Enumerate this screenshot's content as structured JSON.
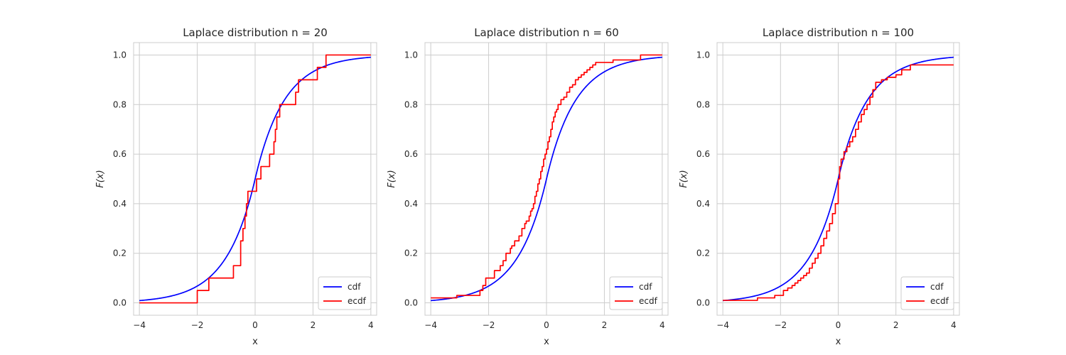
{
  "chart_data": [
    {
      "type": "line",
      "title": "Laplace distribution n = 20",
      "xlabel": "x",
      "ylabel": "F(x)",
      "xlim": [
        -4.2,
        4.2
      ],
      "ylim": [
        -0.05,
        1.05
      ],
      "xticks": [
        -4,
        -2,
        0,
        2,
        4
      ],
      "yticks": [
        0.0,
        0.2,
        0.4,
        0.6,
        0.8,
        1.0
      ],
      "xtick_labels": [
        "−4",
        "−2",
        "0",
        "2",
        "4"
      ],
      "ytick_labels": [
        "0.0",
        "0.2",
        "0.4",
        "0.6",
        "0.8",
        "1.0"
      ],
      "grid": true,
      "legend_position": "lower-right",
      "series": [
        {
          "name": "cdf",
          "color": "#0000ff",
          "kind": "laplace_cdf",
          "loc": 0,
          "scale": 1,
          "x_range": [
            -4,
            4
          ]
        },
        {
          "name": "ecdf",
          "color": "#ff0000",
          "kind": "step",
          "x": [
            -4.0,
            -2.0,
            -1.6,
            -0.75,
            -0.5,
            -0.42,
            -0.35,
            -0.3,
            -0.25,
            -0.1,
            0.05,
            0.2,
            0.5,
            0.65,
            0.7,
            0.75,
            0.85,
            0.9,
            1.4,
            1.5,
            2.15,
            2.45,
            4.0
          ],
          "y": [
            0.0,
            0.05,
            0.1,
            0.15,
            0.25,
            0.3,
            0.35,
            0.4,
            0.45,
            0.45,
            0.5,
            0.55,
            0.6,
            0.65,
            0.7,
            0.75,
            0.8,
            0.8,
            0.85,
            0.9,
            0.95,
            1.0,
            1.0
          ]
        }
      ]
    },
    {
      "type": "line",
      "title": "Laplace distribution n = 60",
      "xlabel": "x",
      "ylabel": "F(x)",
      "xlim": [
        -4.2,
        4.2
      ],
      "ylim": [
        -0.05,
        1.05
      ],
      "xticks": [
        -4,
        -2,
        0,
        2,
        4
      ],
      "yticks": [
        0.0,
        0.2,
        0.4,
        0.6,
        0.8,
        1.0
      ],
      "xtick_labels": [
        "−4",
        "−2",
        "0",
        "2",
        "4"
      ],
      "ytick_labels": [
        "0.0",
        "0.2",
        "0.4",
        "0.6",
        "0.8",
        "1.0"
      ],
      "grid": true,
      "legend_position": "lower-right",
      "series": [
        {
          "name": "cdf",
          "color": "#0000ff",
          "kind": "laplace_cdf",
          "loc": 0,
          "scale": 1,
          "x_range": [
            -4,
            4
          ]
        },
        {
          "name": "ecdf",
          "color": "#ff0000",
          "kind": "step",
          "x": [
            -4.0,
            -3.1,
            -2.3,
            -2.2,
            -2.1,
            -1.8,
            -1.6,
            -1.5,
            -1.4,
            -1.25,
            -1.2,
            -1.1,
            -0.95,
            -0.85,
            -0.75,
            -0.7,
            -0.6,
            -0.55,
            -0.5,
            -0.45,
            -0.4,
            -0.35,
            -0.3,
            -0.25,
            -0.2,
            -0.15,
            -0.1,
            -0.05,
            0.0,
            0.05,
            0.1,
            0.15,
            0.2,
            0.25,
            0.3,
            0.35,
            0.4,
            0.5,
            0.6,
            0.7,
            0.8,
            0.9,
            1.0,
            1.1,
            1.2,
            1.3,
            1.4,
            1.5,
            1.6,
            1.7,
            1.75,
            2.3,
            3.25,
            4.0
          ],
          "y": [
            0.02,
            0.03,
            0.05,
            0.07,
            0.1,
            0.13,
            0.15,
            0.17,
            0.2,
            0.22,
            0.23,
            0.25,
            0.27,
            0.3,
            0.32,
            0.33,
            0.35,
            0.37,
            0.38,
            0.4,
            0.43,
            0.45,
            0.48,
            0.5,
            0.53,
            0.55,
            0.58,
            0.6,
            0.62,
            0.65,
            0.67,
            0.7,
            0.73,
            0.75,
            0.77,
            0.78,
            0.8,
            0.82,
            0.83,
            0.85,
            0.87,
            0.88,
            0.9,
            0.91,
            0.92,
            0.93,
            0.94,
            0.95,
            0.96,
            0.97,
            0.97,
            0.98,
            1.0,
            1.0
          ]
        }
      ]
    },
    {
      "type": "line",
      "title": "Laplace distribution n = 100",
      "xlabel": "x",
      "ylabel": "F(x)",
      "xlim": [
        -4.2,
        4.2
      ],
      "ylim": [
        -0.05,
        1.05
      ],
      "xticks": [
        -4,
        -2,
        0,
        2,
        4
      ],
      "yticks": [
        0.0,
        0.2,
        0.4,
        0.6,
        0.8,
        1.0
      ],
      "xtick_labels": [
        "−4",
        "−2",
        "0",
        "2",
        "4"
      ],
      "ytick_labels": [
        "0.0",
        "0.2",
        "0.4",
        "0.6",
        "0.8",
        "1.0"
      ],
      "grid": true,
      "legend_position": "lower-right",
      "series": [
        {
          "name": "cdf",
          "color": "#0000ff",
          "kind": "laplace_cdf",
          "loc": 0,
          "scale": 1,
          "x_range": [
            -4,
            4
          ]
        },
        {
          "name": "ecdf",
          "color": "#ff0000",
          "kind": "step",
          "x": [
            -4.0,
            -2.8,
            -2.2,
            -1.9,
            -1.75,
            -1.6,
            -1.5,
            -1.4,
            -1.3,
            -1.2,
            -1.1,
            -1.0,
            -0.9,
            -0.8,
            -0.7,
            -0.6,
            -0.5,
            -0.4,
            -0.3,
            -0.2,
            -0.1,
            0.0,
            0.05,
            0.1,
            0.2,
            0.3,
            0.4,
            0.5,
            0.6,
            0.7,
            0.8,
            0.9,
            1.0,
            1.1,
            1.2,
            1.3,
            1.5,
            1.7,
            2.0,
            2.2,
            2.5,
            4.0
          ],
          "y": [
            0.01,
            0.02,
            0.03,
            0.05,
            0.06,
            0.07,
            0.08,
            0.09,
            0.1,
            0.11,
            0.12,
            0.14,
            0.16,
            0.18,
            0.2,
            0.23,
            0.26,
            0.29,
            0.32,
            0.36,
            0.4,
            0.5,
            0.55,
            0.58,
            0.61,
            0.63,
            0.65,
            0.67,
            0.7,
            0.73,
            0.76,
            0.78,
            0.8,
            0.83,
            0.86,
            0.89,
            0.9,
            0.91,
            0.92,
            0.94,
            0.96,
            0.96
          ]
        }
      ]
    }
  ]
}
